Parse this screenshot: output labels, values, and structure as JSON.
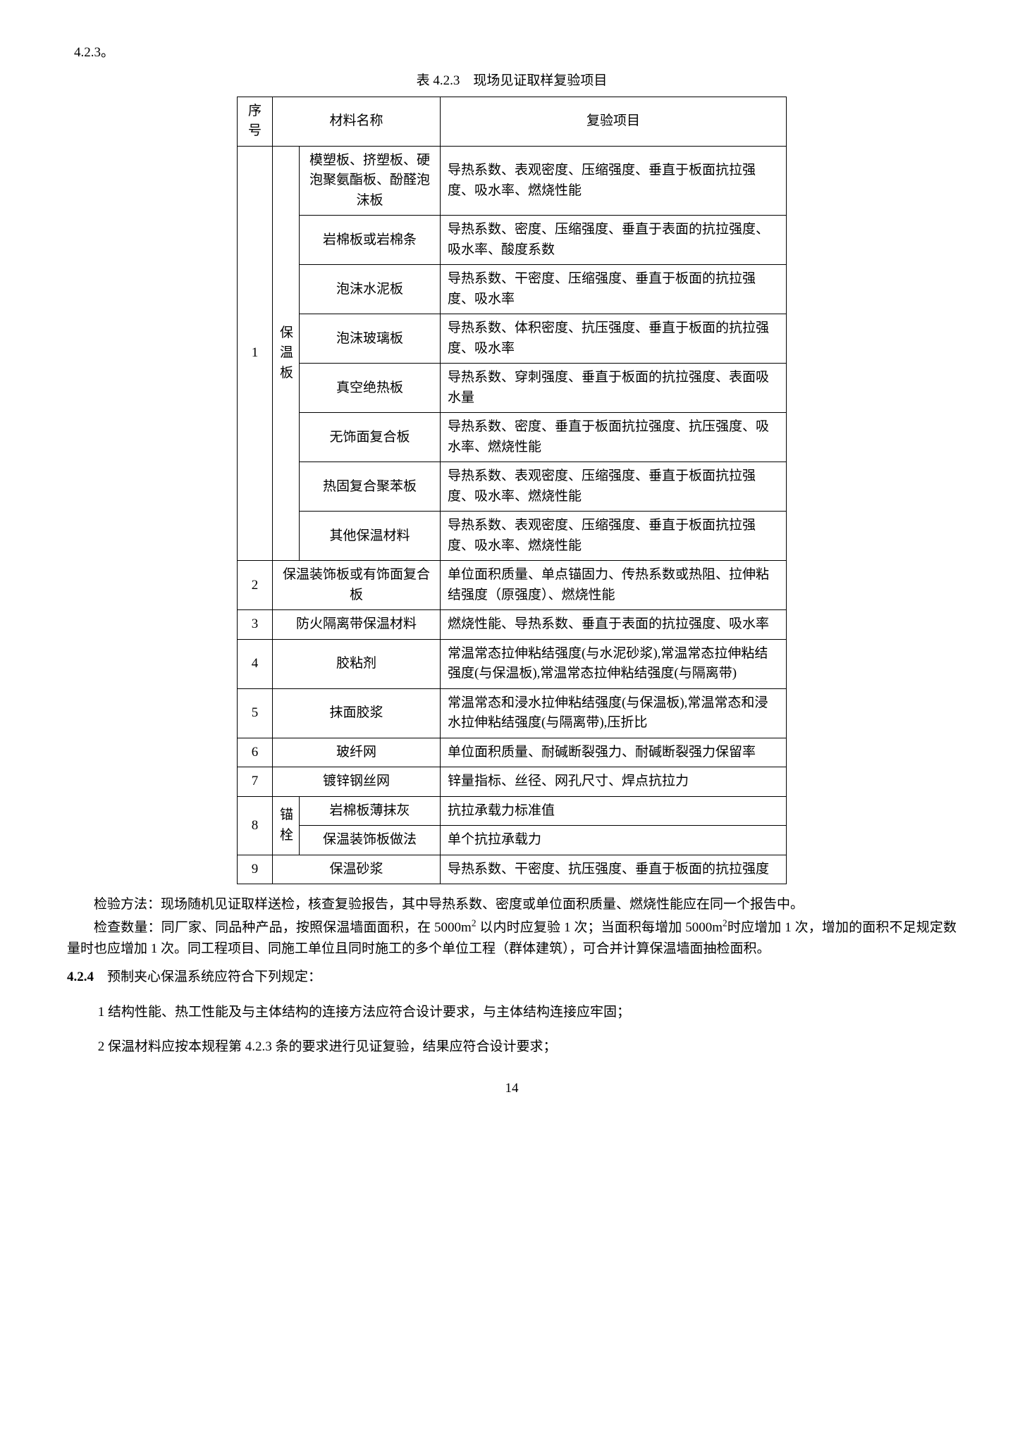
{
  "section_ref": "4.2.3。",
  "table_title": "表 4.2.3　现场见证取样复验项目",
  "headers": {
    "seq": "序号",
    "material": "材料名称",
    "test": "复验项目"
  },
  "row1": {
    "seq": "1",
    "cat": "保温板",
    "items": [
      {
        "mat": "模塑板、挤塑板、硬泡聚氨酯板、酚醛泡沫板",
        "test": "导热系数、表观密度、压缩强度、垂直于板面抗拉强度、吸水率、燃烧性能"
      },
      {
        "mat": "岩棉板或岩棉条",
        "test": "导热系数、密度、压缩强度、垂直于表面的抗拉强度、吸水率、酸度系数"
      },
      {
        "mat": "泡沫水泥板",
        "test": "导热系数、干密度、压缩强度、垂直于板面的抗拉强度、吸水率"
      },
      {
        "mat": "泡沫玻璃板",
        "test": "导热系数、体积密度、抗压强度、垂直于板面的抗拉强度、吸水率"
      },
      {
        "mat": "真空绝热板",
        "test": "导热系数、穿刺强度、垂直于板面的抗拉强度、表面吸水量"
      },
      {
        "mat": "无饰面复合板",
        "test": "导热系数、密度、垂直于板面抗拉强度、抗压强度、吸水率、燃烧性能"
      },
      {
        "mat": "热固复合聚苯板",
        "test": "导热系数、表观密度、压缩强度、垂直于板面抗拉强度、吸水率、燃烧性能"
      },
      {
        "mat": "其他保温材料",
        "test": "导热系数、表观密度、压缩强度、垂直于板面抗拉强度、吸水率、燃烧性能"
      }
    ]
  },
  "row2": {
    "seq": "2",
    "mat": "保温装饰板或有饰面复合板",
    "test": "单位面积质量、单点锚固力、传热系数或热阻、拉伸粘结强度（原强度）、燃烧性能"
  },
  "row3": {
    "seq": "3",
    "mat": "防火隔离带保温材料",
    "test": "燃烧性能、导热系数、垂直于表面的抗拉强度、吸水率"
  },
  "row4": {
    "seq": "4",
    "mat": "胶粘剂",
    "test": "常温常态拉伸粘结强度(与水泥砂浆),常温常态拉伸粘结强度(与保温板),常温常态拉伸粘结强度(与隔离带)"
  },
  "row5": {
    "seq": "5",
    "mat": "抹面胶浆",
    "test": "常温常态和浸水拉伸粘结强度(与保温板),常温常态和浸水拉伸粘结强度(与隔离带),压折比"
  },
  "row6": {
    "seq": "6",
    "mat": "玻纤网",
    "test": "单位面积质量、耐碱断裂强力、耐碱断裂强力保留率"
  },
  "row7": {
    "seq": "7",
    "mat": "镀锌钢丝网",
    "test": "锌量指标、丝径、网孔尺寸、焊点抗拉力"
  },
  "row8": {
    "seq": "8",
    "cat": "锚栓",
    "items": [
      {
        "mat": "岩棉板薄抹灰",
        "test": "抗拉承载力标准值"
      },
      {
        "mat": "保温装饰板做法",
        "test": "单个抗拉承载力"
      }
    ]
  },
  "row9": {
    "seq": "9",
    "mat": "保温砂浆",
    "test": "导热系数、干密度、抗压强度、垂直于板面的抗拉强度"
  },
  "para1": "检验方法：现场随机见证取样送检，核查复验报告，其中导热系数、密度或单位面积质量、燃烧性能应在同一个报告中。",
  "para2_a": "检查数量：同厂家、同品种产品，按照保温墙面面积，在 5000m",
  "para2_b": " 以内时应复验 1 次；当面积每增加 5000m",
  "para2_c": "时应增加 1 次，增加的面积不足规定数量时也应增加 1 次。同工程项目、同施工单位且同时施工的多个单位工程（群体建筑），可合并计算保温墙面抽检面积。",
  "para3_lead": "4.2.4",
  "para3_text": "　预制夹心保温系统应符合下列规定：",
  "li1": "1  结构性能、热工性能及与主体结构的连接方法应符合设计要求，与主体结构连接应牢固；",
  "li2": "2  保温材料应按本规程第 4.2.3 条的要求进行见证复验，结果应符合设计要求；",
  "page_num": "14"
}
